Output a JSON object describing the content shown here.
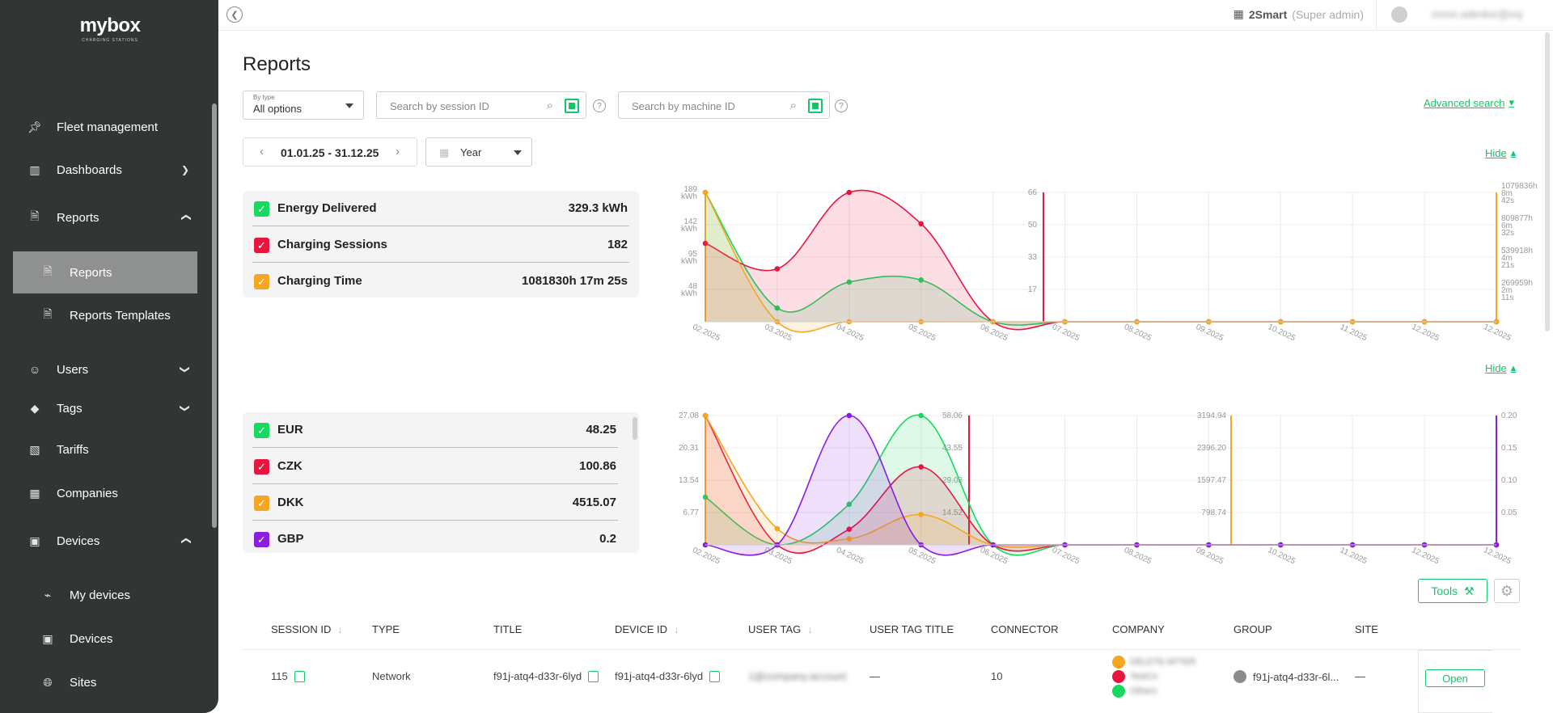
{
  "app": {
    "brand": "mybox",
    "brand_sub": "CHARGING STATIONS"
  },
  "sidebar": {
    "items": [
      {
        "label": "Fleet management",
        "icon": "pin-icon"
      },
      {
        "label": "Dashboards",
        "icon": "dashboard-icon"
      },
      {
        "label": "Reports",
        "icon": "document-icon"
      },
      {
        "label": "Reports",
        "icon": "document-icon"
      },
      {
        "label": "Reports Templates",
        "icon": "document-icon"
      },
      {
        "label": "Users",
        "icon": "users-icon"
      },
      {
        "label": "Tags",
        "icon": "tag-icon"
      },
      {
        "label": "Tariffs",
        "icon": "tariff-icon"
      },
      {
        "label": "Companies",
        "icon": "building-icon"
      },
      {
        "label": "Devices",
        "icon": "devices-icon"
      },
      {
        "label": "My devices",
        "icon": "plug-icon"
      },
      {
        "label": "Devices",
        "icon": "devices-icon"
      },
      {
        "label": "Sites",
        "icon": "globe-icon"
      }
    ]
  },
  "topbar": {
    "org": "2Smart",
    "role": "(Super admin)",
    "user": "mnnn.aderiksr@xoj"
  },
  "page": {
    "title": "Reports"
  },
  "filters": {
    "type_caption": "By type",
    "type_value": "All options",
    "session_placeholder": "Search by session ID",
    "machine_placeholder": "Search by machine ID",
    "advanced_search": "Advanced search",
    "help": "?"
  },
  "period": {
    "range": "01.01.25 - 31.12.25",
    "granularity": "Year"
  },
  "hide_label": "Hide",
  "summary1": [
    {
      "label": "Energy Delivered",
      "value": "329.3 kWh",
      "color": "#18d85f"
    },
    {
      "label": "Charging Sessions",
      "value": "182",
      "color": "#e8163f"
    },
    {
      "label": "Charging Time",
      "value": "1081830h 17m 25s",
      "color": "#f5a623"
    }
  ],
  "summary2": [
    {
      "label": "EUR",
      "value": "48.25",
      "color": "#18d85f"
    },
    {
      "label": "CZK",
      "value": "100.86",
      "color": "#e8163f"
    },
    {
      "label": "DKK",
      "value": "4515.07",
      "color": "#f5a623"
    },
    {
      "label": "GBP",
      "value": "0.2",
      "color": "#8a1de0"
    }
  ],
  "chart_data": [
    {
      "type": "area",
      "categories": [
        "02.2025",
        "03.2025",
        "04.2025",
        "05.2025",
        "06.2025",
        "07.2025",
        "08.2025",
        "09.2025",
        "10.2025",
        "11.2025",
        "12.2025",
        "12.2025"
      ],
      "axes": {
        "left": [
          "189\nkWh",
          "142\nkWh",
          "95\nkWh",
          "48\nkWh"
        ],
        "middle": [
          "66",
          "50",
          "33",
          "17"
        ],
        "right": [
          "1079836h\n8m\n42s",
          "809877h\n6m\n32s",
          "539918h\n4m\n21s",
          "269959h\n2m\n11s"
        ]
      },
      "series": [
        {
          "name": "Energy Delivered",
          "color": "#18d85f",
          "values": [
            189,
            20,
            58,
            61,
            0,
            0,
            0,
            0,
            0,
            0,
            0,
            0
          ],
          "ymax": 189
        },
        {
          "name": "Charging Sessions",
          "color": "#e8163f",
          "values": [
            40,
            27,
            66,
            50,
            0,
            0,
            0,
            0,
            0,
            0,
            0,
            0
          ],
          "ymax": 66
        },
        {
          "name": "Charging Time",
          "color": "#f5a623",
          "values": [
            1079836,
            0,
            0,
            0,
            0,
            0,
            0,
            0,
            0,
            0,
            0,
            0
          ],
          "ymax": 1079836
        }
      ],
      "grid": true
    },
    {
      "type": "area",
      "categories": [
        "02.2025",
        "03.2025",
        "04.2025",
        "05.2025",
        "06.2025",
        "07.2025",
        "08.2025",
        "09.2025",
        "10.2025",
        "11.2025",
        "12.2025",
        "12.2025"
      ],
      "axes": {
        "a": [
          "27.08",
          "20.31",
          "13.54",
          "6.77"
        ],
        "b": [
          "58.06",
          "43.55",
          "29.03",
          "14.52"
        ],
        "c": [
          "3194.94",
          "2396.20",
          "1597.47",
          "798.74"
        ],
        "d": [
          "0.20",
          "0.15",
          "0.10",
          "0.05"
        ]
      },
      "series": [
        {
          "name": "EUR",
          "color": "#18d85f",
          "values": [
            10,
            0,
            8.5,
            27.08,
            0,
            0,
            0,
            0,
            0,
            0,
            0,
            0
          ],
          "ymax": 27.08
        },
        {
          "name": "CZK",
          "color": "#e8163f",
          "values": [
            58.06,
            0,
            7,
            35,
            0,
            0,
            0,
            0,
            0,
            0,
            0,
            0
          ],
          "ymax": 58.06
        },
        {
          "name": "DKK",
          "color": "#f5a623",
          "values": [
            3194.94,
            400,
            150,
            750,
            0,
            0,
            0,
            0,
            0,
            0,
            0,
            0
          ],
          "ymax": 3194.94
        },
        {
          "name": "GBP",
          "color": "#8a1de0",
          "values": [
            0,
            0,
            0.2,
            0,
            0,
            0,
            0,
            0,
            0,
            0,
            0,
            0
          ],
          "ymax": 0.2
        }
      ],
      "grid": true
    }
  ],
  "toolbar": {
    "tools_label": "Tools"
  },
  "table": {
    "headers": [
      "SESSION ID",
      "TYPE",
      "TITLE",
      "DEVICE ID",
      "USER TAG",
      "USER TAG TITLE",
      "CONNECTOR",
      "COMPANY",
      "GROUP",
      "SITE"
    ],
    "row": {
      "session_id": "115",
      "type": "Network",
      "title": "f91j-atq4-d33r-6lyd",
      "device_id": "f91j-atq4-d33r-6lyd",
      "user_tag": "1@company.account",
      "user_tag_title": "—",
      "connector": "10",
      "companies": [
        "DELETE AFTER",
        "TestCo",
        "Others"
      ],
      "group": "f91j-atq4-d33r-6l...",
      "site": "—",
      "open": "Open"
    }
  }
}
